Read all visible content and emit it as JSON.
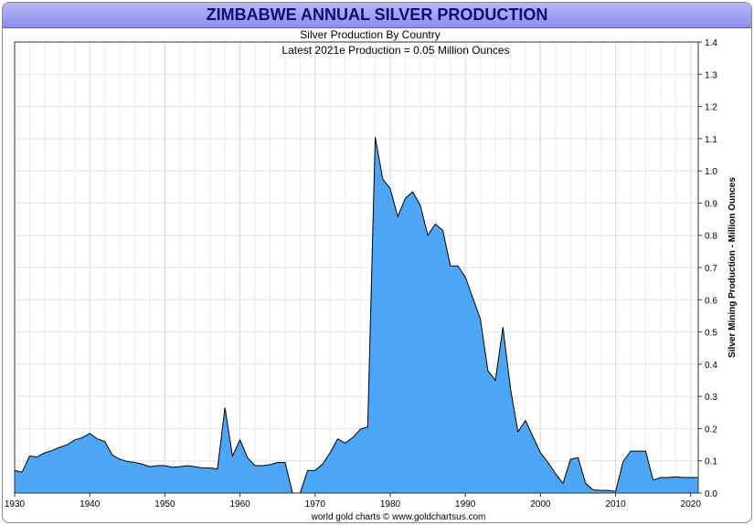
{
  "title": "ZIMBABWE ANNUAL SILVER PRODUCTION",
  "chart_data": {
    "type": "area",
    "title": "ZIMBABWE ANNUAL SILVER PRODUCTION",
    "subtitle": "Silver Production By Country",
    "annotation": "Latest 2021e Production = 0.05 Million Ounces",
    "xlabel": "",
    "ylabel": "Silver Mining Production - Million Ounces",
    "footer": "world gold charts © www.goldchartsus.com",
    "xlim": [
      1930,
      2021
    ],
    "ylim": [
      0,
      1.4
    ],
    "x_ticks": [
      1930,
      1940,
      1950,
      1960,
      1970,
      1980,
      1990,
      2000,
      2010,
      2020
    ],
    "y_ticks": [
      "0.0",
      "0.1",
      "0.2",
      "0.3",
      "0.4",
      "0.5",
      "0.6",
      "0.7",
      "0.8",
      "0.9",
      "1.0",
      "1.1",
      "1.2",
      "1.3",
      "1.4"
    ],
    "grid": true,
    "y_axis_side": "right",
    "fill_color": "#4da6f5",
    "line_color": "#000000",
    "series": [
      {
        "x": [
          1930,
          1931,
          1932,
          1933,
          1934,
          1935,
          1936,
          1937,
          1938,
          1939,
          1940,
          1941,
          1942,
          1943,
          1944,
          1945,
          1946,
          1947,
          1948,
          1949,
          1950,
          1951,
          1952,
          1953,
          1954,
          1955,
          1956,
          1957,
          1958,
          1959,
          1960,
          1961,
          1962,
          1963,
          1964,
          1965,
          1966,
          1967,
          1968,
          1969,
          1970,
          1971,
          1972,
          1973,
          1974,
          1975,
          1976,
          1977,
          1978,
          1979,
          1980,
          1981,
          1982,
          1983,
          1984,
          1985,
          1986,
          1987,
          1988,
          1989,
          1990,
          1991,
          1992,
          1993,
          1994,
          1995,
          1996,
          1997,
          1998,
          1999,
          2000,
          2001,
          2002,
          2003,
          2004,
          2005,
          2006,
          2007,
          2008,
          2009,
          2010,
          2011,
          2012,
          2013,
          2014,
          2015,
          2016,
          2017,
          2018,
          2019,
          2020,
          2021
        ],
        "values": [
          0.07,
          0.065,
          0.115,
          0.112,
          0.125,
          0.132,
          0.142,
          0.15,
          0.165,
          0.172,
          0.185,
          0.168,
          0.16,
          0.118,
          0.105,
          0.098,
          0.095,
          0.09,
          0.082,
          0.085,
          0.085,
          0.08,
          0.082,
          0.085,
          0.082,
          0.078,
          0.078,
          0.075,
          0.265,
          0.115,
          0.165,
          0.11,
          0.085,
          0.085,
          0.088,
          0.095,
          0.095,
          0.0,
          0.0,
          0.07,
          0.07,
          0.09,
          0.125,
          0.168,
          0.155,
          0.172,
          0.198,
          0.205,
          1.105,
          0.975,
          0.945,
          0.858,
          0.915,
          0.935,
          0.893,
          0.8,
          0.835,
          0.815,
          0.705,
          0.705,
          0.67,
          0.605,
          0.54,
          0.38,
          0.35,
          0.515,
          0.325,
          0.19,
          0.225,
          0.175,
          0.125,
          0.095,
          0.06,
          0.03,
          0.105,
          0.11,
          0.03,
          0.01,
          0.008,
          0.008,
          0.005,
          0.098,
          0.13,
          0.13,
          0.13,
          0.04,
          0.048,
          0.048,
          0.05,
          0.048,
          0.048,
          0.048
        ]
      }
    ]
  }
}
